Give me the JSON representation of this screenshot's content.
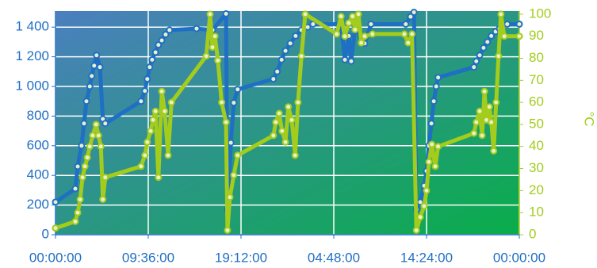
{
  "chart_data": {
    "type": "line",
    "xlim": [
      0,
      48
    ],
    "xticks": [
      {
        "value": 0,
        "label": "00:00:00"
      },
      {
        "value": 9.6,
        "label": "09:36:00"
      },
      {
        "value": 19.2,
        "label": "19:12:00"
      },
      {
        "value": 28.8,
        "label": "04:48:00"
      },
      {
        "value": 38.4,
        "label": "14:24:00"
      },
      {
        "value": 48,
        "label": "00:00:00"
      }
    ],
    "ylim": [
      0,
      1508
    ],
    "yticks": [
      0,
      200,
      400,
      600,
      800,
      {
        "value": 1000,
        "label": "1 000"
      },
      {
        "value": 1200,
        "label": "1 200"
      },
      {
        "value": 1400,
        "label": "1 400"
      }
    ],
    "y2lim": [
      0,
      101.4
    ],
    "y2ticks": [
      0,
      10,
      20,
      30,
      40,
      50,
      60,
      70,
      80,
      90,
      100
    ],
    "y2label": "°C",
    "grid": true,
    "series": [
      {
        "color": "#1f6fc4",
        "axis": "y",
        "x": [
          0,
          2.05,
          2.3,
          2.7,
          2.95,
          3.2,
          3.55,
          3.75,
          4.0,
          4.25,
          4.6,
          4.9,
          5.15,
          8.85,
          9.25,
          9.5,
          9.75,
          10.0,
          10.35,
          10.65,
          11.0,
          11.4,
          11.8,
          14.6,
          16.25,
          17.65,
          17.8,
          18.15,
          18.45,
          18.85,
          22.55,
          22.95,
          23.4,
          23.8,
          24.3,
          24.85,
          25.45,
          26.1,
          26.65,
          29.55,
          29.95,
          30.35,
          30.6,
          31.0,
          31.6,
          32.0,
          32.65,
          36.25,
          36.75,
          37.1,
          37.35,
          37.75,
          38.15,
          38.4,
          38.65,
          38.9,
          39.15,
          39.4,
          39.6,
          43.3,
          43.55,
          43.9,
          44.3,
          44.7,
          45.1,
          45.55,
          45.95,
          46.75,
          48
        ],
        "values": [
          220,
          310,
          460,
          600,
          750,
          900,
          1000,
          1070,
          1140,
          1210,
          1130,
          780,
          750,
          900,
          970,
          1050,
          1130,
          1180,
          1230,
          1280,
          1310,
          1350,
          1380,
          1390,
          1380,
          1490,
          170,
          620,
          890,
          980,
          1050,
          1100,
          1180,
          1240,
          1290,
          1340,
          1380,
          1400,
          1420,
          1420,
          1180,
          1340,
          1170,
          1390,
          1340,
          1290,
          1420,
          1420,
          1470,
          1500,
          170,
          220,
          330,
          430,
          600,
          750,
          900,
          1000,
          1060,
          1130,
          1170,
          1210,
          1260,
          1300,
          1340,
          1370,
          1390,
          1420,
          1420
        ]
      },
      {
        "color": "#a3cc1c",
        "axis": "y2",
        "x": [
          0,
          2.05,
          2.3,
          2.55,
          2.8,
          3.05,
          3.3,
          3.55,
          3.85,
          4.2,
          4.45,
          4.7,
          4.9,
          5.15,
          8.85,
          9.25,
          9.5,
          9.85,
          10.1,
          10.35,
          10.65,
          11.0,
          11.3,
          11.65,
          12.0,
          15.6,
          16.0,
          16.25,
          16.5,
          16.8,
          17.2,
          17.65,
          17.8,
          18.05,
          18.45,
          18.85,
          22.55,
          22.8,
          23.15,
          23.45,
          23.8,
          24.1,
          24.45,
          24.8,
          25.1,
          25.45,
          25.85,
          29.1,
          29.55,
          29.95,
          30.35,
          30.75,
          31.0,
          31.35,
          31.65,
          32.0,
          32.8,
          36.1,
          36.5,
          36.9,
          37.35,
          37.75,
          38.15,
          38.4,
          38.65,
          38.95,
          39.3,
          39.6,
          43.3,
          43.55,
          43.9,
          44.15,
          44.4,
          44.6,
          44.9,
          45.1,
          45.35,
          45.6,
          45.85,
          46.1,
          46.45,
          48
        ],
        "values": [
          3,
          6,
          10,
          16,
          26,
          31,
          35,
          40,
          45,
          50,
          45,
          40,
          16,
          26,
          31,
          36,
          42,
          47,
          52,
          56,
          26,
          65,
          56,
          36,
          60,
          81,
          100,
          85,
          90,
          79,
          60,
          51,
          2,
          17,
          27,
          36,
          45,
          51,
          55,
          47,
          42,
          58,
          52,
          36,
          60,
          81,
          100,
          91,
          99,
          90,
          96,
          99,
          93,
          100,
          87,
          90,
          91,
          91,
          87,
          91,
          2,
          8,
          13,
          20,
          33,
          41,
          31,
          40,
          46,
          51,
          56,
          45,
          65,
          52,
          58,
          51,
          38,
          60,
          81,
          100,
          90,
          90
        ]
      }
    ]
  }
}
